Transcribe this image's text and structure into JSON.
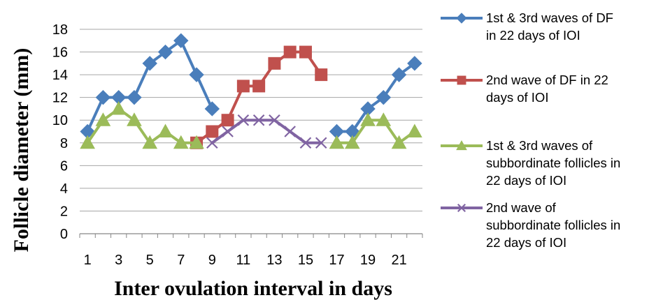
{
  "chart_data": {
    "type": "line",
    "title": "",
    "xlabel": "Inter ovulation interval in days",
    "ylabel": "Follicle diameter (mm)",
    "x": [
      1,
      2,
      3,
      4,
      5,
      6,
      7,
      8,
      9,
      10,
      11,
      12,
      13,
      14,
      15,
      16,
      17,
      18,
      19,
      20,
      21,
      22
    ],
    "xtick_labels": [
      "1",
      "3",
      "5",
      "7",
      "9",
      "11",
      "13",
      "15",
      "17",
      "19",
      "21"
    ],
    "xlim": [
      0.5,
      22.5
    ],
    "ylim": [
      0,
      18
    ],
    "yticks": [
      "0",
      "2",
      "4",
      "6",
      "8",
      "10",
      "12",
      "14",
      "16",
      "18"
    ],
    "grid": "horizontal",
    "legend_position": "right",
    "series": [
      {
        "name": "1st & 3rd waves of DF in 22 days of IOI",
        "label_lines": [
          "1st & 3rd waves of DF",
          "in 22 days of IOI"
        ],
        "color": "#4a7ebb",
        "marker": "diamond",
        "segments": [
          {
            "x": [
              1,
              2,
              3,
              4,
              5,
              6,
              7,
              8,
              9
            ],
            "y": [
              9,
              12,
              12,
              12,
              15,
              16,
              17,
              14,
              11
            ]
          },
          {
            "x": [
              17,
              18,
              19,
              20,
              21,
              22
            ],
            "y": [
              9,
              9,
              11,
              12,
              14,
              15
            ]
          }
        ]
      },
      {
        "name": "2nd wave of DF in 22 days of IOI",
        "label_lines": [
          "2nd wave of DF in 22",
          "days of IOI"
        ],
        "color": "#c0504d",
        "marker": "square",
        "segments": [
          {
            "x": [
              8,
              9,
              10,
              11,
              12,
              13,
              14,
              15,
              16
            ],
            "y": [
              8,
              9,
              10,
              13,
              13,
              15,
              16,
              16,
              14
            ]
          }
        ]
      },
      {
        "name": "1st & 3rd waves of subbordinate follicles in 22 days of IOI",
        "label_lines": [
          "1st & 3rd waves of",
          "subbordinate follicles in",
          "22 days of IOI"
        ],
        "color": "#9bbb59",
        "marker": "triangle",
        "segments": [
          {
            "x": [
              1,
              2,
              3,
              4,
              5,
              6,
              7,
              8
            ],
            "y": [
              8,
              10,
              11,
              10,
              8,
              9,
              8,
              8
            ]
          },
          {
            "x": [
              17,
              18,
              19,
              20,
              21,
              22
            ],
            "y": [
              8,
              8,
              10,
              10,
              8,
              9
            ]
          }
        ]
      },
      {
        "name": "2nd wave of subbordinate follicles in 22 days of IOI",
        "label_lines": [
          "2nd wave of",
          "subbordinate follicles in",
          "22 days of IOI"
        ],
        "color": "#8064a2",
        "marker": "x",
        "segments": [
          {
            "x": [
              9,
              10,
              11,
              12,
              13,
              14,
              15,
              16
            ],
            "y": [
              8,
              9,
              10,
              10,
              10,
              9,
              8,
              8
            ]
          }
        ]
      }
    ]
  }
}
